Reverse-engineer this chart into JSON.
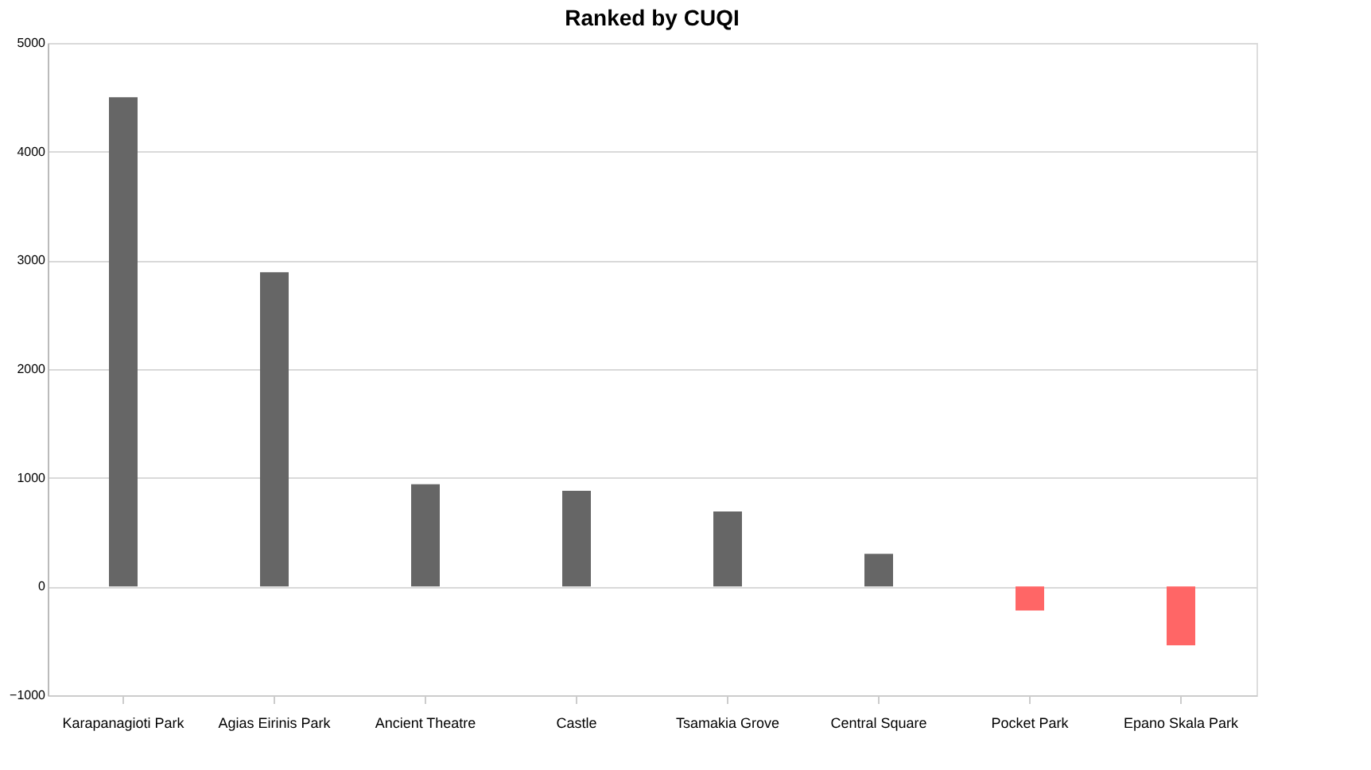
{
  "chart_data": {
    "type": "bar",
    "title": "Ranked by CUQI",
    "categories": [
      "Karapanagioti Park",
      "Agias Eirinis Park",
      "Ancient Theatre",
      "Castle",
      "Tsamakia Grove",
      "Central Square",
      "Pocket Park",
      "Epano Skala Park"
    ],
    "values": [
      4500,
      2890,
      940,
      880,
      690,
      300,
      -220,
      -540
    ],
    "colors": [
      "#666666",
      "#666666",
      "#666666",
      "#666666",
      "#666666",
      "#666666",
      "#ff6666",
      "#ff6666"
    ],
    "ylim": [
      -1000,
      5000
    ],
    "yticks": [
      -1000,
      0,
      1000,
      2000,
      3000,
      4000,
      5000
    ],
    "grid": "y"
  }
}
